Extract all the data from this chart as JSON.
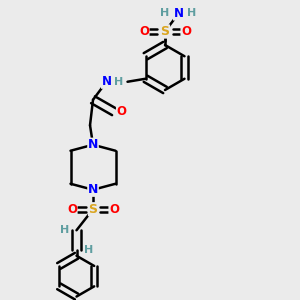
{
  "bg_color": "#ebebeb",
  "atom_colors": {
    "C": "#000000",
    "H": "#5f9ea0",
    "N": "#0000FF",
    "O": "#FF0000",
    "S": "#DAA520"
  },
  "bond_color": "#000000",
  "bond_width": 1.8,
  "figsize": [
    3.0,
    3.0
  ],
  "dpi": 100
}
